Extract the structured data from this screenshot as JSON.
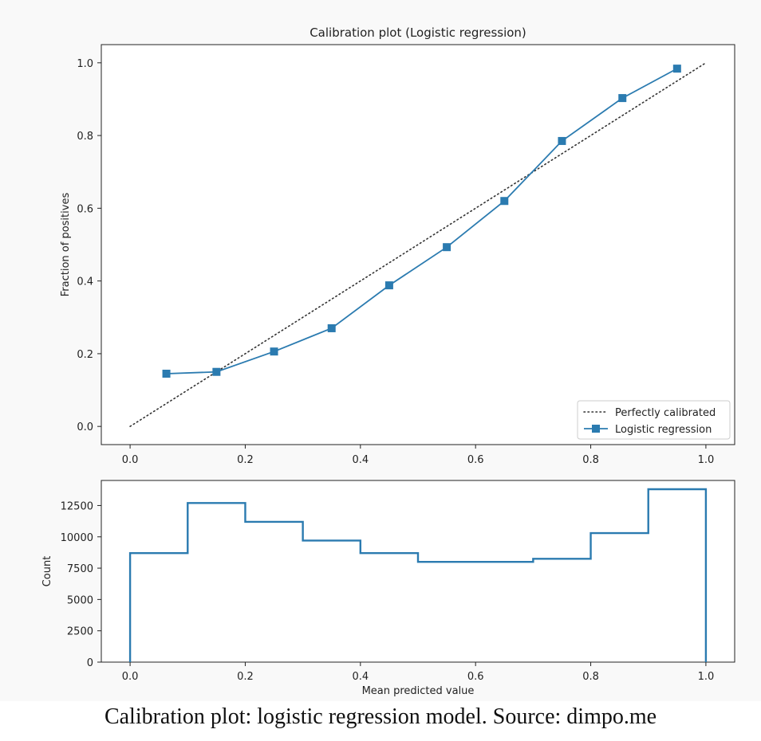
{
  "caption": "Calibration plot: logistic regression model. Source: dimpo.me",
  "colors": {
    "series": "#2b7bb0",
    "reference": "#333333",
    "hist": "#2b7bb0"
  },
  "chart_data": [
    {
      "type": "line",
      "title": "Calibration plot (Logistic regression)",
      "xlabel": "",
      "ylabel": "Fraction of positives",
      "xlim": [
        -0.05,
        1.05
      ],
      "ylim": [
        -0.05,
        1.05
      ],
      "xticks": [
        "0.0",
        "0.2",
        "0.4",
        "0.6",
        "0.8",
        "1.0"
      ],
      "yticks": [
        "0.0",
        "0.2",
        "0.4",
        "0.6",
        "0.8",
        "1.0"
      ],
      "legend_position": "bottom-right",
      "series": [
        {
          "name": "Perfectly calibrated",
          "style": "dotted",
          "x": [
            0,
            1
          ],
          "y": [
            0,
            1
          ]
        },
        {
          "name": "Logistic regression",
          "style": "line-square-markers",
          "x": [
            0.063,
            0.15,
            0.25,
            0.35,
            0.45,
            0.55,
            0.65,
            0.75,
            0.855,
            0.95
          ],
          "y": [
            0.145,
            0.15,
            0.206,
            0.27,
            0.388,
            0.493,
            0.62,
            0.785,
            0.903,
            0.984
          ]
        }
      ]
    },
    {
      "type": "histogram",
      "title": "",
      "xlabel": "Mean predicted value",
      "ylabel": "Count",
      "xlim": [
        -0.05,
        1.05
      ],
      "ylim": [
        0,
        14500
      ],
      "xticks": [
        "0.0",
        "0.2",
        "0.4",
        "0.6",
        "0.8",
        "1.0"
      ],
      "yticks": [
        "0",
        "2500",
        "5000",
        "7500",
        "10000",
        "12500"
      ],
      "histtype": "step",
      "bin_edges": [
        0.0,
        0.1,
        0.2,
        0.3,
        0.4,
        0.5,
        0.6,
        0.7,
        0.8,
        0.9,
        1.0
      ],
      "counts": [
        8700,
        12700,
        11200,
        9700,
        8700,
        8000,
        8000,
        8250,
        10300,
        13800
      ]
    }
  ]
}
